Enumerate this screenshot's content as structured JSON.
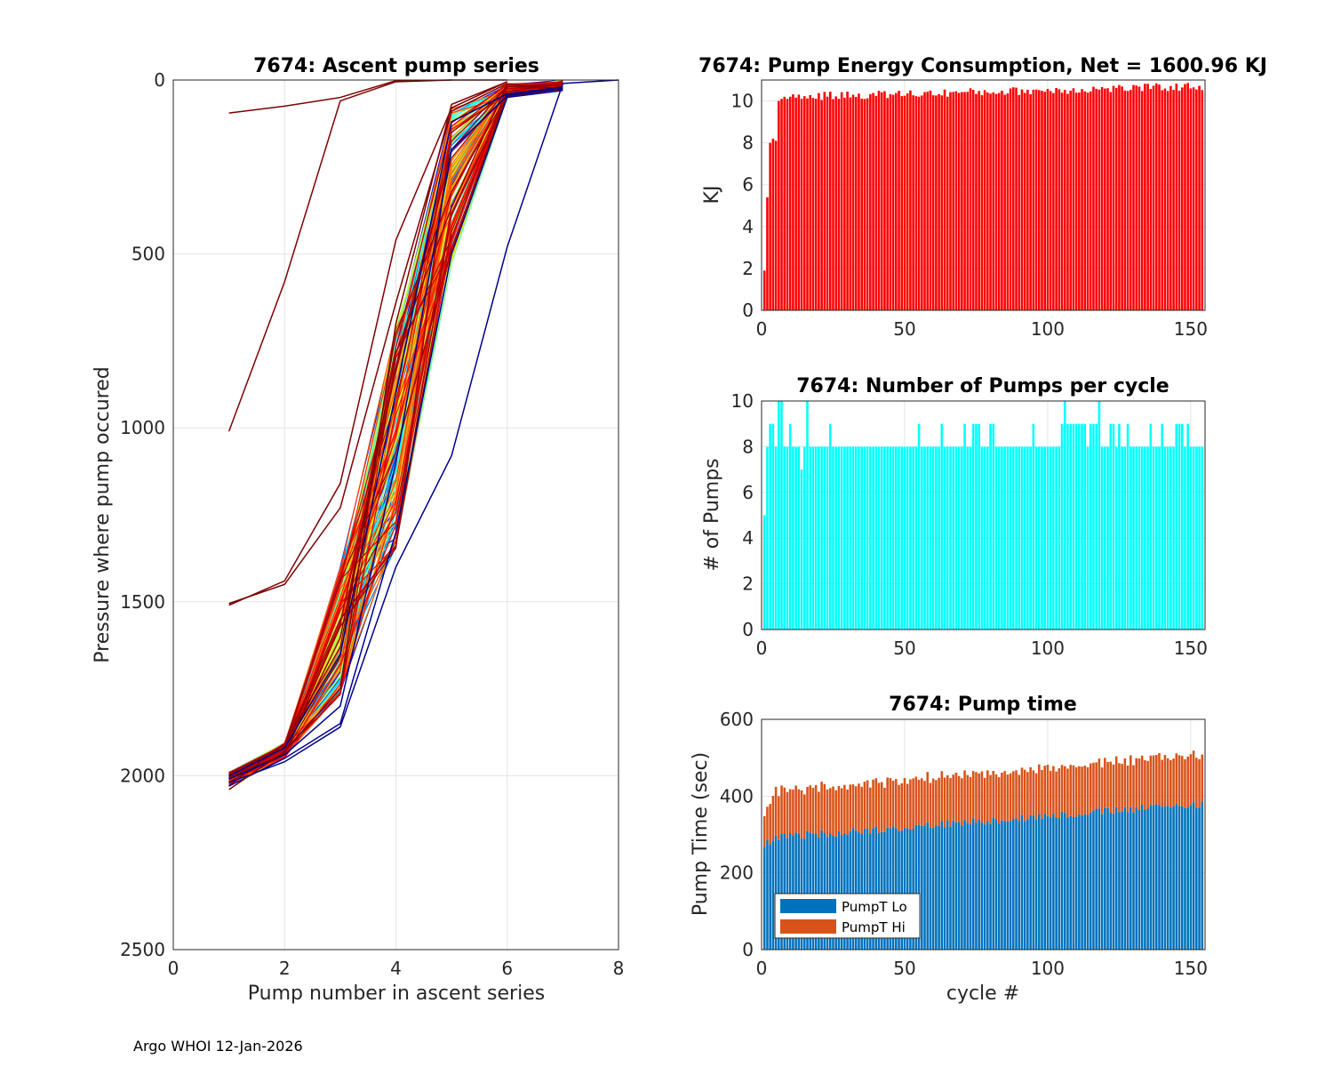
{
  "chart_data": [
    {
      "id": "ascent",
      "type": "line",
      "title": "7674: Ascent pump series",
      "xlabel": "Pump number in ascent series",
      "ylabel": "Pressure where pump occured",
      "xlim": [
        0,
        8
      ],
      "ylim": [
        0,
        2500
      ],
      "y_reversed": true,
      "grid": true,
      "xticks": [
        0,
        2,
        4,
        6,
        8
      ],
      "yticks": [
        0,
        500,
        1000,
        1500,
        2000,
        2500
      ],
      "color_order": "jet colormap by cycle (dark blue early cycles to dark red late cycles)",
      "representative_series": [
        {
          "name": "profile",
          "x": [
            1,
            2,
            3,
            4,
            5,
            6,
            7
          ],
          "y": [
            2010,
            1940,
            1800,
            1100,
            200,
            45,
            25
          ]
        },
        {
          "name": "profile",
          "x": [
            1,
            2,
            3,
            4,
            5,
            6,
            7
          ],
          "y": [
            2000,
            1920,
            1650,
            900,
            120,
            40,
            20
          ]
        },
        {
          "name": "profile",
          "x": [
            1,
            2,
            3,
            4,
            5,
            6,
            7
          ],
          "y": [
            2030,
            1950,
            1850,
            1300,
            500,
            50,
            30
          ]
        },
        {
          "name": "profile",
          "x": [
            1,
            2,
            3,
            4,
            5,
            6,
            7,
            8
          ],
          "y": [
            2020,
            1960,
            1860,
            1400,
            1080,
            480,
            10,
            0
          ]
        },
        {
          "name": "profile",
          "x": [
            1,
            2,
            3,
            4,
            5,
            6
          ],
          "y": [
            2040,
            1930,
            1750,
            700,
            70,
            5
          ]
        },
        {
          "name": "profile",
          "x": [
            1,
            2,
            3,
            4,
            5,
            6
          ],
          "y": [
            1010,
            580,
            60,
            5,
            0,
            0
          ]
        },
        {
          "name": "profile",
          "x": [
            1,
            2,
            3,
            4,
            5
          ],
          "y": [
            95,
            75,
            50,
            2,
            0
          ]
        },
        {
          "name": "profile",
          "x": [
            1,
            2,
            3,
            4,
            5,
            6
          ],
          "y": [
            1510,
            1440,
            1160,
            460,
            80,
            5
          ]
        },
        {
          "name": "profile",
          "x": [
            1,
            2,
            3,
            4,
            5,
            6
          ],
          "y": [
            1505,
            1450,
            1230,
            640,
            90,
            10
          ]
        }
      ]
    },
    {
      "id": "energy",
      "type": "bar",
      "title": "7674: Pump Energy Consumption,  Net = 1600.96 KJ",
      "xlabel": "",
      "ylabel": "KJ",
      "xlim": [
        0,
        155
      ],
      "ylim": [
        0,
        11
      ],
      "xticks": [
        0,
        50,
        100,
        150
      ],
      "yticks": [
        0,
        2,
        4,
        6,
        8,
        10
      ],
      "grid": true,
      "bar_color": "#ff0000",
      "bars": [
        [
          1,
          1.9
        ],
        [
          2,
          5.4
        ],
        [
          3,
          8.0
        ],
        [
          4,
          8.2
        ],
        [
          5,
          8.1
        ],
        [
          6,
          10.0
        ],
        [
          7,
          10.1
        ],
        [
          8,
          10.2
        ],
        [
          9,
          10.1
        ],
        [
          10,
          10.2
        ]
      ],
      "bars_rest": {
        "from_cycle": 11,
        "to_cycle": 154,
        "base": 10.2,
        "rise_to": 10.7,
        "jitter": 0.2
      }
    },
    {
      "id": "npumps",
      "type": "bar",
      "title": "7674: Number of Pumps per cycle",
      "xlabel": "",
      "ylabel": "# of Pumps",
      "xlim": [
        0,
        155
      ],
      "ylim": [
        0,
        10
      ],
      "xticks": [
        0,
        50,
        100,
        150
      ],
      "yticks": [
        0,
        2,
        4,
        6,
        8,
        10
      ],
      "grid": true,
      "bar_color": "#00ffff",
      "default_value": 8,
      "exceptions": [
        [
          1,
          5
        ],
        [
          2,
          8
        ],
        [
          3,
          9
        ],
        [
          4,
          9
        ],
        [
          5,
          8
        ],
        [
          6,
          10
        ],
        [
          7,
          10
        ],
        [
          8,
          8
        ],
        [
          9,
          8
        ],
        [
          10,
          9
        ],
        [
          14,
          7
        ],
        [
          16,
          10
        ],
        [
          24,
          9
        ],
        [
          55,
          9
        ],
        [
          63,
          9
        ],
        [
          71,
          9
        ],
        [
          74,
          9
        ],
        [
          75,
          9
        ],
        [
          76,
          9
        ],
        [
          80,
          9
        ],
        [
          81,
          9
        ],
        [
          95,
          9
        ],
        [
          105,
          9
        ],
        [
          106,
          10
        ],
        [
          107,
          9
        ],
        [
          108,
          9
        ],
        [
          109,
          9
        ],
        [
          110,
          9
        ],
        [
          111,
          9
        ],
        [
          112,
          9
        ],
        [
          113,
          9
        ],
        [
          115,
          9
        ],
        [
          116,
          9
        ],
        [
          117,
          9
        ],
        [
          118,
          10
        ],
        [
          122,
          9
        ],
        [
          123,
          9
        ],
        [
          125,
          9
        ],
        [
          128,
          9
        ],
        [
          136,
          9
        ],
        [
          140,
          9
        ],
        [
          145,
          9
        ],
        [
          146,
          9
        ],
        [
          147,
          9
        ],
        [
          149,
          9
        ]
      ],
      "n_cycles": 154
    },
    {
      "id": "pumptime",
      "type": "bar",
      "stacked": true,
      "title": "7674: Pump time",
      "xlabel": "cycle #",
      "ylabel": "Pump Time (sec)",
      "xlim": [
        0,
        155
      ],
      "ylim": [
        0,
        600
      ],
      "xticks": [
        0,
        50,
        100,
        150
      ],
      "yticks": [
        0,
        200,
        400,
        600
      ],
      "grid": true,
      "legend_position": "bottom-left",
      "series": [
        {
          "name": "PumpT Lo",
          "color": "#0072bd",
          "start": 290,
          "end": 380,
          "jitter": 10
        },
        {
          "name": "PumpT Hi",
          "color": "#d95319",
          "start": 120,
          "end": 130,
          "jitter": 8
        }
      ],
      "n_cycles": 154
    }
  ],
  "footer": {
    "text": "Argo WHOI 12-Jan-2026"
  }
}
